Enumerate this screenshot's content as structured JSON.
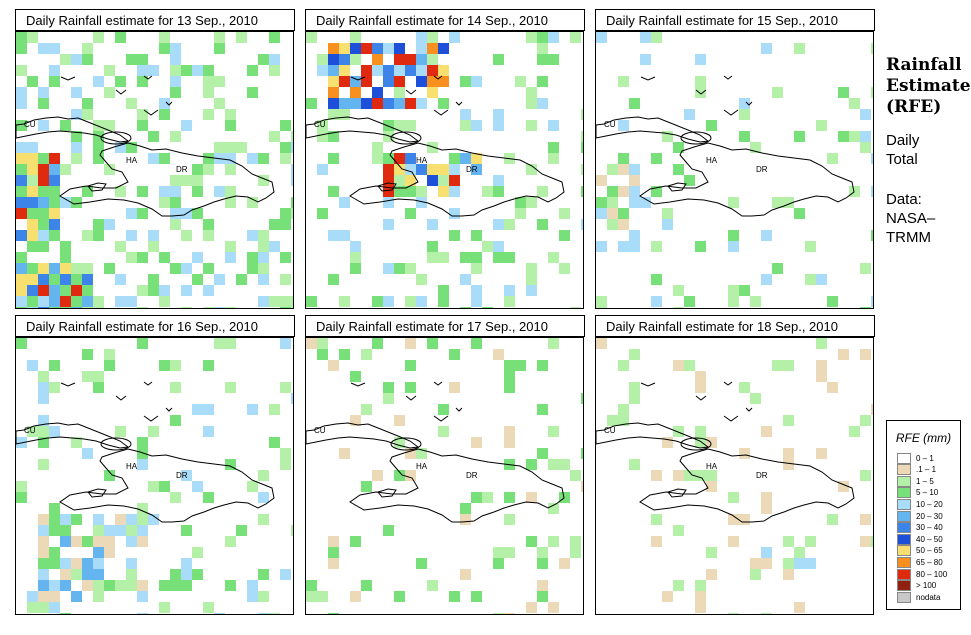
{
  "panels": [
    {
      "title": "Daily Rainfall estimate for  13 Sep., 2010"
    },
    {
      "title": "Daily Rainfall estimate for  14 Sep., 2010"
    },
    {
      "title": "Daily Rainfall estimate for  15 Sep., 2010"
    },
    {
      "title": "Daily Rainfall estimate for  16 Sep., 2010"
    },
    {
      "title": "Daily Rainfall estimate for  17 Sep., 2010"
    },
    {
      "title": "Daily Rainfall estimate for  18 Sep., 2010"
    }
  ],
  "map_labels": {
    "cuba": "CU",
    "haiti": "HA",
    "dr": "DR"
  },
  "side": {
    "title_line1": "Rainfall",
    "title_line2": "Estimate",
    "title_line3": "(RFE)",
    "daily_line1": "Daily",
    "daily_line2": "Total",
    "data_line1": "Data:",
    "data_line2": "NASA–",
    "data_line3": "TRMM"
  },
  "legend": {
    "title": "RFE (mm)",
    "entries": [
      {
        "label": "0 – 1",
        "color": "#ffffff"
      },
      {
        "label": ".1 – 1",
        "color": "#ecd9b8"
      },
      {
        "label": "1 – 5",
        "color": "#b4f0a8"
      },
      {
        "label": "5 – 10",
        "color": "#78e078"
      },
      {
        "label": "10 – 20",
        "color": "#a8dcf8"
      },
      {
        "label": "20 – 30",
        "color": "#64b4f0"
      },
      {
        "label": "30 – 40",
        "color": "#3c84e8"
      },
      {
        "label": "40 – 50",
        "color": "#1e4fd8"
      },
      {
        "label": "50 – 65",
        "color": "#f8e070"
      },
      {
        "label": "65 – 80",
        "color": "#f89020"
      },
      {
        "label": "80 – 100",
        "color": "#e02a10"
      },
      {
        "label": "> 100",
        "color": "#902010"
      },
      {
        "label": "nodata",
        "color": "#c8c8c8"
      }
    ]
  }
}
